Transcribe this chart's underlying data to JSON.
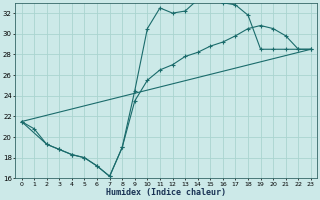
{
  "xlabel": "Humidex (Indice chaleur)",
  "bg_color": "#cce9e8",
  "grid_color": "#aad4d0",
  "line_color": "#1a6b6b",
  "xlim": [
    -0.5,
    23.5
  ],
  "ylim": [
    16,
    33
  ],
  "xticks": [
    0,
    1,
    2,
    3,
    4,
    5,
    6,
    7,
    8,
    9,
    10,
    11,
    12,
    13,
    14,
    15,
    16,
    17,
    18,
    19,
    20,
    21,
    22,
    23
  ],
  "yticks": [
    16,
    18,
    20,
    22,
    24,
    26,
    28,
    30,
    32
  ],
  "line1_x": [
    0,
    1,
    2,
    3,
    4,
    5,
    6,
    7,
    8,
    9,
    10,
    11,
    12,
    13,
    14,
    15,
    16,
    17,
    18,
    19,
    20,
    21,
    22,
    23
  ],
  "line1_y": [
    21.5,
    20.8,
    19.3,
    18.8,
    18.3,
    18.0,
    17.2,
    16.2,
    19.0,
    24.5,
    30.5,
    32.5,
    32.0,
    32.2,
    33.3,
    33.5,
    33.0,
    32.8,
    31.8,
    28.5,
    28.5,
    28.5,
    28.5,
    28.5
  ],
  "line2_x": [
    0,
    2,
    3,
    4,
    5,
    6,
    7,
    8,
    9,
    10,
    11,
    12,
    13,
    14,
    15,
    16,
    17,
    18,
    19,
    20,
    21,
    22,
    23
  ],
  "line2_y": [
    21.5,
    19.3,
    18.8,
    18.3,
    18.0,
    17.2,
    16.2,
    19.0,
    23.5,
    25.5,
    26.5,
    27.0,
    27.8,
    28.2,
    28.8,
    29.2,
    29.8,
    30.5,
    30.8,
    30.5,
    29.8,
    28.5,
    28.5
  ],
  "line3_x": [
    0,
    23
  ],
  "line3_y": [
    21.5,
    28.5
  ]
}
